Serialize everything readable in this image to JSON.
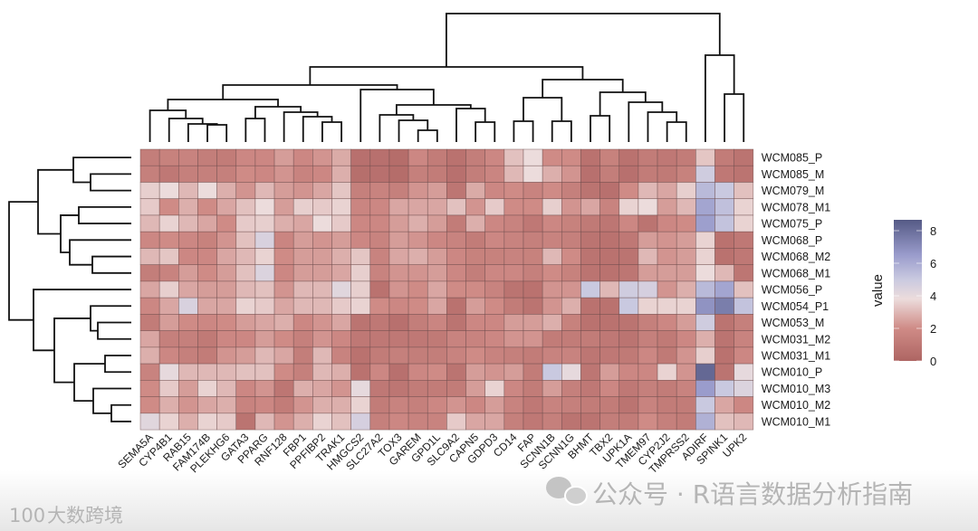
{
  "chart_data": {
    "type": "heatmap",
    "title": "",
    "legend_title": "value",
    "legend_ticks": [
      0,
      2,
      4,
      6,
      8
    ],
    "value_range": [
      0,
      8.67
    ],
    "colors": {
      "low": "#ae6563",
      "mid": "#ecdcdc",
      "high": "#555a85"
    },
    "columns": [
      "SEMA5A",
      "CYP4B1",
      "RAB15",
      "FAM174B",
      "PLEKHG6",
      "GATA3",
      "PPARG",
      "RNF128",
      "FBP1",
      "PPFIBP2",
      "TRAK1",
      "HMGCS2",
      "SLC27A2",
      "TOX3",
      "GAREM",
      "GPD1L",
      "SLC9A2",
      "CAPN5",
      "GDPD3",
      "CD14",
      "FAP",
      "SCNN1B",
      "SCNN1G",
      "BHMT",
      "TBX2",
      "UPK1A",
      "TMEM97",
      "CYP2J2",
      "TMPRSS2",
      "ADIRF",
      "SPINK1",
      "UPK2"
    ],
    "rows": [
      "WCM085_P",
      "WCM085_M",
      "WCM079_M",
      "WCM078_M1",
      "WCM075_P",
      "WCM068_P",
      "WCM068_M2",
      "WCM068_M1",
      "WCM056_P",
      "WCM054_P1",
      "WCM053_M",
      "WCM031_M2",
      "WCM031_M1",
      "WCM010_P",
      "WCM010_M3",
      "WCM010_M2",
      "WCM010_M1"
    ],
    "values": [
      [
        1.3,
        1.5,
        1.6,
        1.3,
        1.2,
        1.8,
        1.8,
        2.4,
        1.8,
        2.2,
        2.7,
        0.6,
        0.6,
        0.4,
        1.8,
        1.2,
        0.7,
        1.3,
        1.8,
        3.2,
        3.8,
        2.0,
        2.0,
        0.7,
        1.5,
        0.7,
        1.2,
        1.0,
        1.2,
        3.3,
        1.2,
        0.8
      ],
      [
        1.4,
        1.0,
        1.4,
        1.4,
        1.4,
        2.0,
        1.8,
        2.2,
        1.6,
        1.8,
        2.8,
        0.5,
        0.6,
        0.4,
        1.4,
        1.2,
        0.6,
        1.3,
        1.7,
        3.0,
        3.8,
        2.8,
        2.2,
        0.6,
        1.3,
        0.6,
        1.2,
        1.1,
        1.5,
        4.8,
        1.0,
        0.8
      ],
      [
        3.5,
        3.8,
        3.0,
        3.8,
        2.8,
        2.2,
        3.0,
        2.4,
        2.2,
        2.6,
        3.3,
        1.4,
        1.6,
        1.4,
        2.2,
        2.4,
        0.9,
        2.7,
        1.8,
        2.0,
        1.6,
        2.0,
        1.4,
        0.8,
        0.6,
        2.0,
        3.0,
        2.6,
        3.5,
        5.5,
        5.0,
        3.2
      ],
      [
        3.4,
        2.0,
        2.8,
        2.0,
        2.6,
        3.2,
        3.8,
        2.4,
        3.5,
        3.4,
        3.6,
        1.7,
        1.8,
        2.6,
        2.6,
        2.6,
        3.2,
        2.2,
        3.4,
        2.0,
        2.0,
        3.5,
        2.2,
        2.6,
        1.6,
        3.6,
        3.8,
        2.4,
        3.0,
        6.2,
        5.3,
        3.6
      ],
      [
        3.0,
        3.6,
        3.0,
        2.6,
        2.0,
        3.4,
        3.5,
        2.8,
        2.6,
        3.8,
        3.4,
        1.8,
        1.8,
        2.4,
        2.8,
        2.4,
        1.2,
        2.8,
        1.8,
        1.6,
        1.0,
        1.8,
        1.5,
        1.1,
        0.9,
        1.8,
        0.8,
        1.8,
        2.0,
        6.4,
        5.2,
        3.6
      ],
      [
        1.8,
        2.0,
        1.8,
        1.5,
        2.2,
        3.2,
        4.5,
        1.7,
        2.4,
        2.2,
        2.4,
        1.8,
        1.6,
        2.4,
        2.2,
        1.8,
        1.6,
        1.2,
        1.8,
        1.6,
        1.4,
        1.6,
        1.4,
        0.8,
        0.7,
        1.0,
        2.4,
        2.2,
        2.4,
        3.6,
        0.7,
        1.0
      ],
      [
        3.0,
        3.3,
        1.8,
        1.8,
        2.6,
        3.0,
        3.6,
        2.0,
        2.4,
        2.4,
        2.8,
        3.3,
        1.6,
        2.6,
        2.8,
        2.4,
        1.8,
        1.5,
        1.5,
        1.6,
        1.5,
        3.0,
        2.0,
        0.8,
        0.7,
        0.8,
        3.0,
        2.2,
        2.4,
        3.6,
        0.7,
        1.0
      ],
      [
        1.3,
        1.6,
        2.4,
        2.0,
        2.4,
        3.2,
        4.4,
        1.8,
        2.4,
        2.4,
        2.6,
        3.5,
        1.6,
        2.2,
        2.2,
        2.4,
        1.8,
        1.3,
        1.8,
        1.8,
        1.4,
        2.0,
        1.5,
        0.8,
        0.7,
        0.9,
        2.4,
        2.4,
        2.4,
        3.8,
        3.0,
        0.9
      ],
      [
        2.6,
        3.5,
        2.6,
        2.4,
        2.4,
        3.0,
        3.2,
        2.2,
        3.0,
        3.0,
        4.2,
        3.5,
        0.7,
        2.2,
        2.0,
        2.6,
        2.0,
        2.0,
        1.6,
        0.8,
        0.7,
        2.2,
        2.2,
        5.0,
        3.0,
        4.8,
        4.6,
        2.2,
        2.8,
        5.5,
        6.2,
        3.2
      ],
      [
        1.8,
        2.6,
        4.5,
        2.6,
        2.6,
        3.6,
        3.4,
        2.6,
        3.0,
        3.0,
        3.4,
        3.6,
        2.0,
        1.8,
        2.0,
        2.6,
        0.7,
        2.4,
        2.0,
        1.2,
        0.8,
        2.2,
        2.8,
        0.7,
        0.7,
        5.0,
        3.6,
        3.6,
        3.6,
        6.8,
        7.5,
        5.2
      ],
      [
        1.2,
        2.4,
        2.0,
        1.8,
        2.0,
        2.4,
        2.6,
        2.8,
        1.8,
        2.2,
        2.6,
        0.8,
        1.0,
        0.6,
        1.3,
        1.7,
        0.8,
        1.8,
        1.8,
        2.4,
        2.4,
        2.8,
        1.5,
        0.7,
        0.7,
        0.8,
        1.4,
        1.8,
        2.4,
        4.8,
        0.8,
        1.4
      ],
      [
        2.6,
        1.4,
        1.4,
        1.1,
        1.8,
        1.8,
        2.4,
        2.0,
        1.4,
        2.2,
        1.8,
        1.0,
        1.0,
        1.0,
        1.0,
        1.1,
        1.6,
        1.6,
        1.8,
        2.2,
        2.2,
        1.2,
        1.2,
        1.2,
        1.0,
        0.8,
        1.4,
        1.1,
        1.8,
        2.8,
        0.8,
        1.6
      ],
      [
        2.8,
        1.8,
        1.4,
        1.2,
        2.2,
        2.4,
        3.0,
        2.6,
        1.3,
        3.0,
        1.6,
        0.7,
        1.2,
        1.4,
        1.3,
        1.3,
        1.6,
        2.0,
        1.6,
        1.4,
        1.2,
        1.6,
        1.6,
        0.9,
        1.0,
        1.1,
        1.8,
        1.1,
        2.2,
        3.5,
        0.7,
        1.8
      ],
      [
        1.6,
        4.0,
        3.0,
        3.0,
        3.0,
        3.2,
        3.2,
        2.0,
        1.4,
        3.0,
        2.8,
        0.7,
        1.8,
        0.6,
        1.8,
        2.0,
        0.8,
        2.4,
        2.2,
        2.4,
        1.2,
        5.0,
        4.0,
        0.9,
        2.4,
        1.8,
        1.8,
        3.6,
        2.2,
        8.2,
        0.8,
        4.0
      ],
      [
        2.0,
        3.4,
        2.4,
        3.6,
        3.0,
        1.8,
        2.2,
        0.9,
        2.8,
        2.6,
        2.2,
        4.0,
        1.0,
        0.9,
        1.2,
        1.2,
        1.2,
        2.4,
        3.6,
        1.8,
        1.2,
        2.4,
        1.4,
        1.0,
        1.8,
        1.0,
        1.4,
        1.2,
        1.6,
        6.5,
        5.0,
        4.4
      ],
      [
        2.0,
        2.8,
        2.2,
        2.6,
        2.8,
        1.6,
        1.8,
        1.2,
        2.2,
        2.8,
        2.8,
        3.6,
        1.2,
        1.6,
        1.4,
        1.8,
        2.2,
        1.8,
        2.4,
        1.6,
        1.0,
        1.6,
        1.4,
        1.2,
        1.2,
        0.8,
        1.6,
        1.2,
        1.2,
        5.0,
        2.6,
        1.8
      ],
      [
        4.2,
        3.6,
        2.8,
        3.6,
        3.4,
        0.8,
        3.0,
        2.2,
        2.8,
        3.6,
        3.2,
        4.6,
        1.4,
        1.8,
        1.6,
        1.6,
        3.4,
        2.6,
        2.6,
        1.4,
        1.0,
        1.4,
        0.8,
        0.8,
        1.3,
        1.2,
        2.0,
        1.4,
        1.2,
        5.8,
        3.2,
        3.0
      ]
    ]
  },
  "watermark": {
    "logo_text": "大数跨境",
    "logo_mark": "100",
    "channel_text": "公众号 · R语言数据分析指南"
  }
}
